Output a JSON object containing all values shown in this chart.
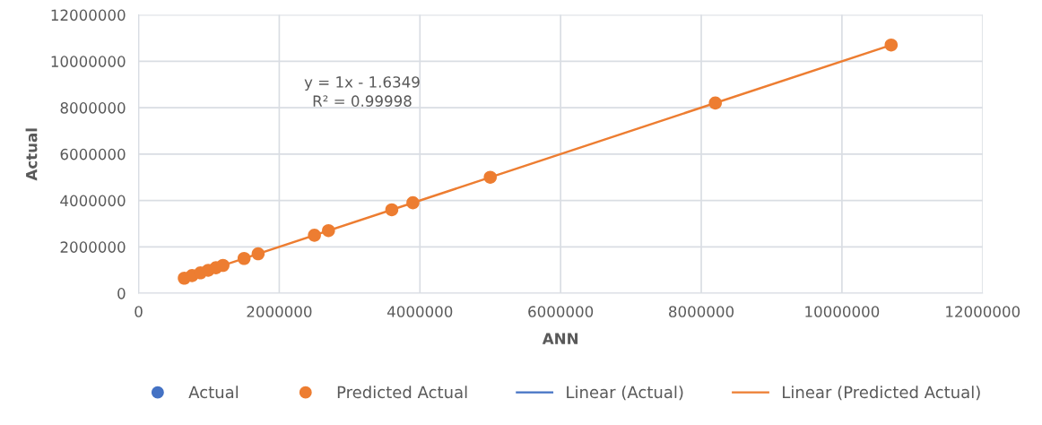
{
  "chart_data": {
    "type": "scatter",
    "xlabel": "ANN",
    "ylabel": "Actual",
    "xlim": [
      0,
      12000000
    ],
    "ylim": [
      0,
      12000000
    ],
    "xticks": [
      0,
      2000000,
      4000000,
      6000000,
      8000000,
      10000000,
      12000000
    ],
    "yticks": [
      0,
      2000000,
      4000000,
      6000000,
      8000000,
      10000000,
      12000000
    ],
    "grid": true,
    "legend": "bottom",
    "annotations": [
      "y = 1x - 1.6349\nR² = 0.99998"
    ],
    "x": [
      650000,
      760000,
      880000,
      990000,
      1100000,
      1200000,
      1500000,
      1700000,
      2500000,
      2700000,
      3600000,
      3900000,
      5000000,
      8200000,
      10700000
    ],
    "series": [
      {
        "name": "Actual",
        "color": "#4472c4",
        "marker": "circle",
        "values": [
          null,
          null,
          null,
          null,
          null,
          null,
          null,
          null,
          null,
          null,
          null,
          null,
          null,
          null,
          null
        ]
      },
      {
        "name": "Predicted Actual",
        "color": "#ed7d31",
        "marker": "circle",
        "values": [
          650000,
          760000,
          880000,
          990000,
          1100000,
          1200000,
          1500000,
          1700000,
          2500000,
          2700000,
          3600000,
          3900000,
          5000000,
          8200000,
          10700000
        ]
      },
      {
        "name": "Linear (Actual)",
        "type": "line",
        "color": "#4472c4",
        "values": [
          null,
          null,
          null,
          null,
          null,
          null,
          null,
          null,
          null,
          null,
          null,
          null,
          null,
          null,
          null
        ]
      },
      {
        "name": "Linear (Predicted Actual)",
        "type": "line",
        "color": "#ed7d31",
        "x": [
          650000,
          10700000
        ],
        "values": [
          650000,
          10700000
        ]
      }
    ]
  }
}
